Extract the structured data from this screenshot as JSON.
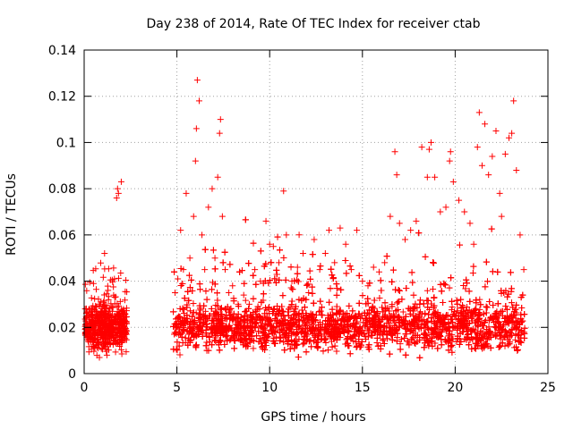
{
  "chart_data": {
    "type": "scatter",
    "title": "Day 238 of 2014, Rate Of TEC Index for receiver ctab",
    "xlabel": "GPS time / hours",
    "ylabel": "ROTI / TECUs",
    "xlim": [
      0,
      25
    ],
    "ylim": [
      0,
      0.14
    ],
    "xticks": [
      0,
      5,
      10,
      15,
      20,
      25
    ],
    "xtick_labels": [
      "0",
      "5",
      "10",
      "15",
      "20",
      "25"
    ],
    "yticks": [
      0,
      0.02,
      0.04,
      0.06,
      0.08,
      0.1,
      0.12,
      0.14
    ],
    "ytick_labels": [
      "0",
      "0.02",
      "0.04",
      "0.06",
      "0.08",
      "0.1",
      "0.12",
      "0.14"
    ],
    "grid": true,
    "marker": "+",
    "color": "#ff0000",
    "data_gap_hours": [
      2.3,
      4.8
    ],
    "series": [
      {
        "name": "ROTI",
        "x": [
          0.1,
          0.3,
          0.5,
          0.7,
          0.9,
          1.1,
          1.3,
          1.5,
          1.65,
          1.75,
          1.8,
          1.85,
          1.9,
          2.0,
          2.1,
          2.2,
          4.9,
          5.05,
          5.2,
          5.35,
          5.5,
          5.7,
          5.9,
          6.0,
          6.05,
          6.1,
          6.2,
          6.35,
          6.5,
          6.7,
          6.9,
          7.05,
          7.2,
          7.3,
          7.35,
          7.45,
          7.6,
          7.8,
          8.0,
          8.3,
          8.6,
          8.9,
          9.2,
          9.5,
          9.8,
          10.0,
          10.2,
          10.5,
          10.75,
          10.9,
          11.2,
          11.5,
          11.8,
          12.1,
          12.4,
          12.7,
          13.0,
          13.2,
          13.5,
          13.8,
          14.1,
          14.4,
          14.7,
          15.0,
          15.3,
          15.6,
          15.9,
          16.2,
          16.5,
          16.75,
          16.85,
          17.0,
          17.3,
          17.6,
          17.9,
          18.2,
          18.5,
          18.6,
          18.7,
          18.9,
          19.2,
          19.5,
          19.7,
          19.75,
          19.9,
          20.2,
          20.5,
          20.8,
          21.0,
          21.2,
          21.3,
          21.45,
          21.6,
          21.8,
          22.0,
          22.2,
          22.4,
          22.5,
          22.7,
          22.9,
          23.05,
          23.15,
          23.3,
          23.5,
          23.7
        ],
        "y": [
          0.018,
          0.022,
          0.02,
          0.025,
          0.031,
          0.052,
          0.024,
          0.029,
          0.033,
          0.076,
          0.08,
          0.078,
          0.026,
          0.083,
          0.024,
          0.018,
          0.035,
          0.041,
          0.062,
          0.045,
          0.078,
          0.05,
          0.068,
          0.092,
          0.106,
          0.127,
          0.118,
          0.06,
          0.045,
          0.072,
          0.08,
          0.05,
          0.085,
          0.104,
          0.11,
          0.068,
          0.045,
          0.035,
          0.038,
          0.03,
          0.034,
          0.03,
          0.045,
          0.04,
          0.066,
          0.056,
          0.055,
          0.048,
          0.079,
          0.06,
          0.04,
          0.046,
          0.052,
          0.035,
          0.058,
          0.045,
          0.052,
          0.062,
          0.048,
          0.063,
          0.056,
          0.045,
          0.062,
          0.04,
          0.038,
          0.046,
          0.044,
          0.048,
          0.068,
          0.096,
          0.086,
          0.065,
          0.058,
          0.062,
          0.066,
          0.098,
          0.085,
          0.097,
          0.1,
          0.085,
          0.07,
          0.072,
          0.092,
          0.096,
          0.083,
          0.075,
          0.07,
          0.065,
          0.056,
          0.098,
          0.113,
          0.09,
          0.108,
          0.086,
          0.094,
          0.105,
          0.078,
          0.068,
          0.095,
          0.102,
          0.104,
          0.118,
          0.088,
          0.06,
          0.045
        ]
      }
    ]
  }
}
